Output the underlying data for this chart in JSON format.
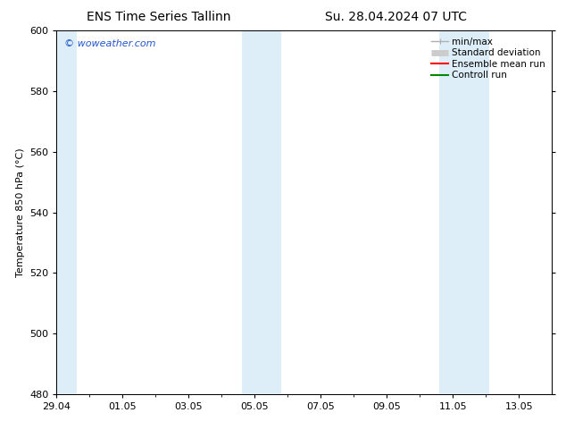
{
  "title_left": "ENS Time Series Tallinn",
  "title_right": "Su. 28.04.2024 07 UTC",
  "ylabel": "Temperature 850 hPa (°C)",
  "ylim": [
    480,
    600
  ],
  "yticks": [
    480,
    500,
    520,
    540,
    560,
    580,
    600
  ],
  "xlim": [
    0,
    15
  ],
  "xtick_labels": [
    "29.04",
    "01.05",
    "03.05",
    "05.05",
    "07.05",
    "09.05",
    "11.05",
    "13.05"
  ],
  "xtick_positions": [
    0,
    2,
    4,
    6,
    8,
    10,
    12,
    14
  ],
  "shaded_bands": [
    {
      "x_start": -0.1,
      "x_end": 0.6
    },
    {
      "x_start": 5.6,
      "x_end": 6.8
    },
    {
      "x_start": 11.6,
      "x_end": 13.1
    }
  ],
  "shaded_color": "#ddeef8",
  "background_color": "#ffffff",
  "plot_bg_color": "#ffffff",
  "watermark": "© woweather.com",
  "watermark_color": "#2255cc",
  "legend_items": [
    {
      "label": "min/max",
      "color": "#b0b0b0",
      "lw": 1.0
    },
    {
      "label": "Standard deviation",
      "color": "#cccccc",
      "lw": 5
    },
    {
      "label": "Ensemble mean run",
      "color": "#ff0000",
      "lw": 1.5
    },
    {
      "label": "Controll run",
      "color": "#008800",
      "lw": 1.5
    }
  ],
  "border_color": "#000000",
  "font_size_title": 10,
  "font_size_axis": 8,
  "font_size_tick": 8,
  "font_size_legend": 7.5,
  "font_size_watermark": 8
}
